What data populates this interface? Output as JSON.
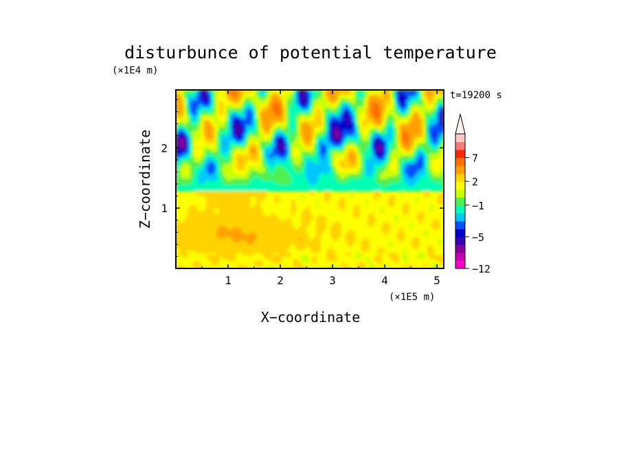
{
  "chart_data": {
    "type": "heatmap",
    "title": "disturbunce of potential temperature",
    "xlabel": "X−coordinate",
    "ylabel": "Z−coordinate",
    "x_unit": "(×1E5 m)",
    "y_unit": "(×1E4 m)",
    "time_label": "t=19200 s",
    "xlim": [
      0,
      5.13
    ],
    "ylim": [
      0,
      2.96
    ],
    "x_ticks": [
      1,
      2,
      3,
      4,
      5
    ],
    "x_tick_labels": [
      "1",
      "2",
      "3",
      "4",
      "5"
    ],
    "y_ticks": [
      1,
      2
    ],
    "y_tick_labels": [
      "1",
      "2"
    ],
    "colorbar": {
      "extend": "max",
      "levels_bottom_to_top": [
        -12,
        -10,
        -8,
        -6,
        -5,
        -4,
        -3,
        -2,
        -1,
        0,
        1,
        2,
        3,
        5,
        7,
        8,
        9
      ],
      "tick_labels_bottom_to_top": [
        "−12",
        "−5",
        "−1",
        "2",
        "7"
      ],
      "colors_bottom_to_top": [
        "#ff00c8",
        "#c800b4",
        "#8c0096",
        "#3c00b4",
        "#0000c8",
        "#0050ff",
        "#00c8ff",
        "#00ffb4",
        "#50f050",
        "#c8ff00",
        "#ffff00",
        "#ffd200",
        "#ffa000",
        "#ff6e00",
        "#ff2800",
        "#ff7878",
        "#ffc8c8"
      ],
      "extend_color": "#fff0f0"
    }
  }
}
